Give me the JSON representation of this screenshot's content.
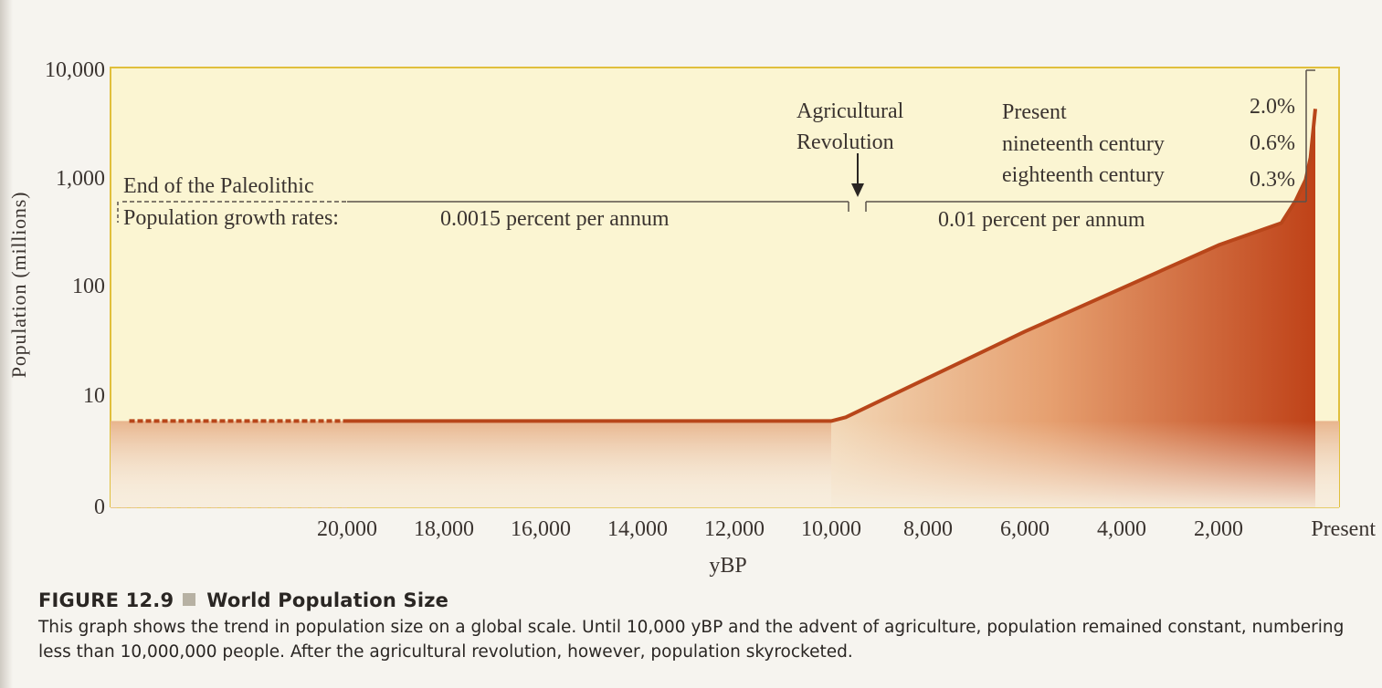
{
  "chart_data": {
    "type": "area",
    "title": "World Population Size",
    "ylabel": "Population (millions)",
    "xlabel": "yBP",
    "yscale": "log",
    "y_ticks": [
      "10,000",
      "1,000",
      "100",
      "10",
      "0"
    ],
    "y_tick_values": [
      10000,
      1000,
      100,
      10,
      0
    ],
    "x_ticks": [
      "20,000",
      "18,000",
      "16,000",
      "14,000",
      "12,000",
      "10,000",
      "8,000",
      "6,000",
      "4,000",
      "2,000",
      "Present"
    ],
    "x_tick_values": [
      20000,
      18000,
      16000,
      14000,
      12000,
      10000,
      8000,
      6000,
      4000,
      2000,
      0
    ],
    "xlim": [
      24500,
      0
    ],
    "series": [
      {
        "name": "World population",
        "x": [
          24500,
          20000,
          10000,
          9700,
          6000,
          2000,
          700,
          400,
          200,
          100,
          0
        ],
        "y": [
          6,
          6,
          6,
          6.5,
          40,
          250,
          400,
          650,
          1000,
          1600,
          4500
        ]
      }
    ],
    "annotations": {
      "end_paleolithic": "End of the Paleolithic",
      "growth_label": "Population growth rates:",
      "paleolithic_rate": "0.0015 percent per annum",
      "agricultural_rate": "0.01 percent per annum",
      "agricultural_revolution_line1": "Agricultural",
      "agricultural_revolution_line2": "Revolution",
      "recent_rates": [
        {
          "period": "Present",
          "rate": "2.0%"
        },
        {
          "period": "nineteenth century",
          "rate": "0.6%"
        },
        {
          "period": "eighteenth century",
          "rate": "0.3%"
        }
      ]
    }
  },
  "caption": {
    "figure_number": "FIGURE 12.9",
    "title": "World Population Size",
    "body": "This graph shows the trend in population size on a global scale. Until 10,000 yBP and the advent of agriculture, population remained constant, numbering less than 10,000,000 people. After the agricultural revolution, however, population skyrocketed."
  },
  "colors": {
    "panel": "#fbf5d2",
    "frame": "#e0bf3c",
    "curve": "#b8461a",
    "fill_top": "#c2481a",
    "fill_bottom": "#f7eddd",
    "text": "#3b3430"
  }
}
